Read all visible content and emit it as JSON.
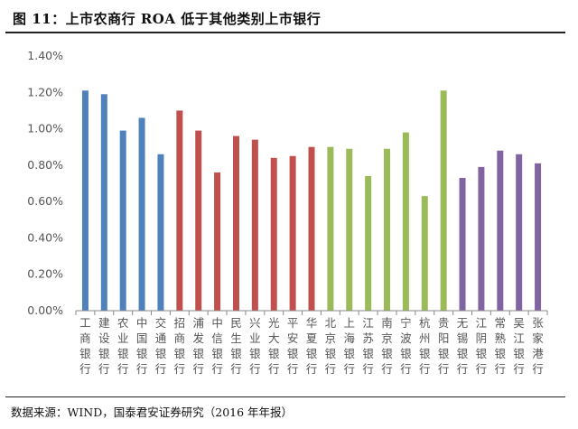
{
  "figure": {
    "title": "图 11：上市农商行 ROA 低于其他类别上市银行",
    "source": "数据来源：WIND，国泰君安证券研究（2016 年年报）"
  },
  "chart_data": {
    "type": "bar",
    "title": "",
    "xlabel": "",
    "ylabel": "",
    "ylim": [
      0,
      0.014
    ],
    "yticks": [
      "0.00%",
      "0.20%",
      "0.40%",
      "0.60%",
      "0.80%",
      "1.00%",
      "1.20%",
      "1.40%"
    ],
    "grid": false,
    "legend": "none",
    "categories": [
      "工商银行",
      "建设银行",
      "农业银行",
      "中国银行",
      "交通银行",
      "招商银行",
      "浦发银行",
      "中信银行",
      "民生银行",
      "兴业银行",
      "光大银行",
      "平安银行",
      "华夏银行",
      "北京银行",
      "上海银行",
      "江苏银行",
      "南京银行",
      "宁波银行",
      "杭州银行",
      "贵阳银行",
      "无锡银行",
      "江阴银行",
      "常熟银行",
      "吴江银行",
      "张家港行"
    ],
    "values": [
      0.0121,
      0.0119,
      0.0099,
      0.0106,
      0.0086,
      0.011,
      0.0099,
      0.0076,
      0.0096,
      0.0094,
      0.0084,
      0.0085,
      0.009,
      0.009,
      0.0089,
      0.0074,
      0.0089,
      0.0098,
      0.0063,
      0.0121,
      0.0073,
      0.0079,
      0.0088,
      0.0086,
      0.0081
    ],
    "bar_colors": [
      "#4f81bd",
      "#4f81bd",
      "#4f81bd",
      "#4f81bd",
      "#4f81bd",
      "#c0504d",
      "#c0504d",
      "#c0504d",
      "#c0504d",
      "#c0504d",
      "#c0504d",
      "#c0504d",
      "#c0504d",
      "#9bbb59",
      "#9bbb59",
      "#9bbb59",
      "#9bbb59",
      "#9bbb59",
      "#9bbb59",
      "#9bbb59",
      "#8064a2",
      "#8064a2",
      "#8064a2",
      "#8064a2",
      "#8064a2"
    ],
    "axis_color": "#888888"
  }
}
